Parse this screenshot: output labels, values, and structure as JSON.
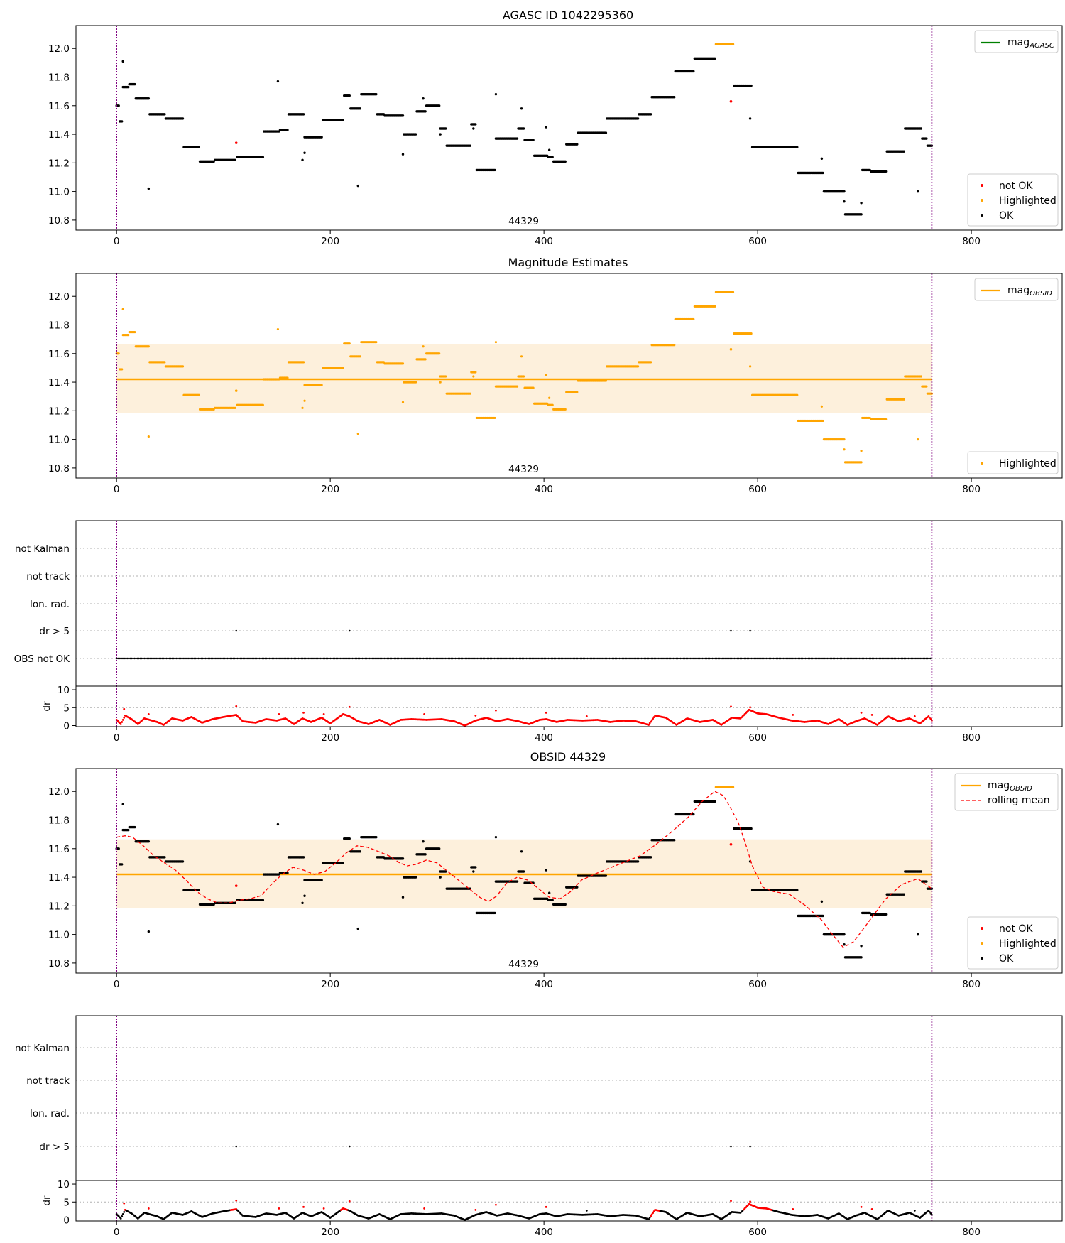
{
  "figure": {
    "obsid_marker": "44329",
    "colors": {
      "ok": "#000000",
      "not_ok": "#ff0000",
      "highlight": "#ffa500",
      "agasc_line": "#008000",
      "band": "#fdf0dc",
      "vline": "#800080",
      "grid": "#b0b0b0"
    }
  },
  "chart_data": [
    {
      "type": "scatter",
      "title": "AGASC ID 1042295360",
      "xlim": [
        -38,
        885
      ],
      "ylim": [
        10.73,
        12.16
      ],
      "xticks": [
        "0",
        "200",
        "400",
        "600",
        "800"
      ],
      "yticks": [
        "10.8",
        "11.0",
        "11.2",
        "11.4",
        "11.6",
        "11.8",
        "12.0"
      ],
      "legend_lines": [
        {
          "label": "mag",
          "sub": "AGASC",
          "color": "#008000",
          "style": "solid"
        }
      ],
      "legend_points": [
        {
          "label": "not OK",
          "color": "#ff0000"
        },
        {
          "label": "Highlighted",
          "color": "#ffa500"
        },
        {
          "label": "OK",
          "color": "#000000"
        }
      ],
      "obsid_range": [
        0,
        763
      ],
      "mean": null,
      "band": null
    },
    {
      "type": "scatter",
      "title": "Magnitude Estimates",
      "xlim": [
        -38,
        885
      ],
      "ylim": [
        10.73,
        12.16
      ],
      "xticks": [
        "0",
        "200",
        "400",
        "600",
        "800"
      ],
      "yticks": [
        "10.8",
        "11.0",
        "11.2",
        "11.4",
        "11.6",
        "11.8",
        "12.0"
      ],
      "legend_lines": [
        {
          "label": "mag",
          "sub": "OBSID",
          "color": "#ffa500",
          "style": "solid"
        }
      ],
      "legend_points": [
        {
          "label": "Highlighted",
          "color": "#ffa500"
        }
      ],
      "obsid_range": [
        0,
        763
      ],
      "mean": 11.42,
      "band": [
        11.185,
        11.665
      ]
    },
    {
      "type": "scatter",
      "title": "",
      "xlim": [
        -38,
        885
      ],
      "categories": [
        "not Kalman",
        "not track",
        "Ion. rad.",
        "dr > 5",
        "OBS not OK"
      ],
      "flag_points": {
        "dr > 5": [
          112,
          218,
          575,
          593
        ],
        "OBS not OK": "all"
      },
      "dr_yticks": [
        "0",
        "5",
        "10"
      ],
      "dr_ylim": [
        -0.3,
        11
      ],
      "xticks": [
        "0",
        "200",
        "400",
        "600",
        "800"
      ],
      "obsid_range": [
        0,
        763
      ]
    },
    {
      "type": "scatter",
      "title": "OBSID 44329",
      "xlim": [
        -38,
        885
      ],
      "ylim": [
        10.73,
        12.16
      ],
      "xticks": [
        "0",
        "200",
        "400",
        "600",
        "800"
      ],
      "yticks": [
        "10.8",
        "11.0",
        "11.2",
        "11.4",
        "11.6",
        "11.8",
        "12.0"
      ],
      "legend_lines": [
        {
          "label": "mag",
          "sub": "OBSID",
          "color": "#ffa500",
          "style": "solid"
        },
        {
          "label": "rolling mean",
          "sub": "",
          "color": "#ff0000",
          "style": "dashed"
        }
      ],
      "legend_points": [
        {
          "label": "not OK",
          "color": "#ff0000"
        },
        {
          "label": "Highlighted",
          "color": "#ffa500"
        },
        {
          "label": "OK",
          "color": "#000000"
        }
      ],
      "obsid_range": [
        0,
        763
      ],
      "mean": 11.42,
      "band": [
        11.185,
        11.665
      ],
      "rolling_mean": [
        [
          0,
          11.68
        ],
        [
          8,
          11.69
        ],
        [
          15,
          11.68
        ],
        [
          25,
          11.62
        ],
        [
          35,
          11.55
        ],
        [
          45,
          11.5
        ],
        [
          55,
          11.45
        ],
        [
          65,
          11.38
        ],
        [
          75,
          11.3
        ],
        [
          85,
          11.25
        ],
        [
          95,
          11.22
        ],
        [
          105,
          11.22
        ],
        [
          115,
          11.24
        ],
        [
          125,
          11.25
        ],
        [
          135,
          11.27
        ],
        [
          145,
          11.35
        ],
        [
          155,
          11.42
        ],
        [
          165,
          11.47
        ],
        [
          175,
          11.45
        ],
        [
          185,
          11.42
        ],
        [
          195,
          11.44
        ],
        [
          205,
          11.5
        ],
        [
          215,
          11.57
        ],
        [
          225,
          11.62
        ],
        [
          235,
          11.61
        ],
        [
          245,
          11.58
        ],
        [
          255,
          11.55
        ],
        [
          265,
          11.5
        ],
        [
          272,
          11.48
        ],
        [
          280,
          11.49
        ],
        [
          290,
          11.52
        ],
        [
          300,
          11.5
        ],
        [
          310,
          11.44
        ],
        [
          320,
          11.38
        ],
        [
          330,
          11.32
        ],
        [
          340,
          11.26
        ],
        [
          348,
          11.23
        ],
        [
          356,
          11.27
        ],
        [
          365,
          11.36
        ],
        [
          375,
          11.4
        ],
        [
          385,
          11.38
        ],
        [
          395,
          11.32
        ],
        [
          405,
          11.26
        ],
        [
          415,
          11.25
        ],
        [
          425,
          11.3
        ],
        [
          435,
          11.38
        ],
        [
          450,
          11.43
        ],
        [
          470,
          11.49
        ],
        [
          490,
          11.55
        ],
        [
          505,
          11.63
        ],
        [
          520,
          11.72
        ],
        [
          535,
          11.82
        ],
        [
          548,
          11.93
        ],
        [
          560,
          12.0
        ],
        [
          568,
          11.97
        ],
        [
          575,
          11.88
        ],
        [
          582,
          11.78
        ],
        [
          588,
          11.65
        ],
        [
          595,
          11.48
        ],
        [
          605,
          11.33
        ],
        [
          615,
          11.3
        ],
        [
          630,
          11.28
        ],
        [
          645,
          11.2
        ],
        [
          660,
          11.1
        ],
        [
          670,
          11.0
        ],
        [
          680,
          10.91
        ],
        [
          690,
          10.95
        ],
        [
          700,
          11.05
        ],
        [
          710,
          11.15
        ],
        [
          720,
          11.25
        ],
        [
          735,
          11.35
        ],
        [
          750,
          11.39
        ],
        [
          763,
          11.32
        ]
      ]
    },
    {
      "type": "scatter",
      "title": "",
      "xlim": [
        -38,
        885
      ],
      "categories": [
        "not Kalman",
        "not track",
        "Ion. rad.",
        "dr > 5"
      ],
      "flag_points": {
        "dr > 5": [
          112,
          218,
          575,
          593
        ]
      },
      "dr_yticks": [
        "0",
        "5",
        "10"
      ],
      "dr_ylim": [
        -0.3,
        11
      ],
      "xticks": [
        "0",
        "200",
        "400",
        "600",
        "800"
      ],
      "obsid_range": [
        0,
        763
      ]
    }
  ],
  "mag_series": {
    "segments": [
      [
        0,
        2,
        11.6
      ],
      [
        3,
        5,
        11.49
      ],
      [
        6,
        11,
        11.73
      ],
      [
        12,
        17,
        11.75
      ],
      [
        18,
        30,
        11.65
      ],
      [
        31,
        45,
        11.54
      ],
      [
        46,
        62,
        11.51
      ],
      [
        63,
        77,
        11.31
      ],
      [
        78,
        91,
        11.21
      ],
      [
        92,
        111,
        11.22
      ],
      [
        113,
        137,
        11.24
      ],
      [
        138,
        152,
        11.42
      ],
      [
        153,
        160,
        11.43
      ],
      [
        161,
        175,
        11.54
      ],
      [
        176,
        192,
        11.38
      ],
      [
        193,
        212,
        11.5
      ],
      [
        213,
        218,
        11.67
      ],
      [
        219,
        228,
        11.58
      ],
      [
        229,
        243,
        11.68
      ],
      [
        244,
        250,
        11.54
      ],
      [
        251,
        268,
        11.53
      ],
      [
        269,
        280,
        11.4
      ],
      [
        281,
        289,
        11.56
      ],
      [
        290,
        302,
        11.6
      ],
      [
        303,
        308,
        11.44
      ],
      [
        309,
        331,
        11.32
      ],
      [
        332,
        336,
        11.47
      ],
      [
        337,
        354,
        11.15
      ],
      [
        355,
        375,
        11.37
      ],
      [
        376,
        381,
        11.44
      ],
      [
        382,
        390,
        11.36
      ],
      [
        391,
        403,
        11.25
      ],
      [
        404,
        408,
        11.24
      ],
      [
        409,
        420,
        11.21
      ],
      [
        421,
        431,
        11.33
      ],
      [
        432,
        458,
        11.41
      ],
      [
        459,
        488,
        11.51
      ],
      [
        489,
        500,
        11.54
      ],
      [
        501,
        522,
        11.66
      ],
      [
        523,
        540,
        11.84
      ],
      [
        541,
        560,
        11.93
      ],
      [
        561,
        577,
        12.03
      ],
      [
        578,
        594,
        11.74
      ],
      [
        595,
        637,
        11.31
      ],
      [
        638,
        661,
        11.13
      ],
      [
        662,
        681,
        11.0
      ],
      [
        682,
        697,
        10.84
      ],
      [
        698,
        705,
        11.15
      ],
      [
        706,
        720,
        11.14
      ],
      [
        721,
        737,
        11.28
      ],
      [
        738,
        753,
        11.44
      ],
      [
        754,
        758,
        11.37
      ],
      [
        759,
        763,
        11.32
      ]
    ],
    "outliers": [
      [
        4,
        11.49
      ],
      [
        6,
        11.91
      ],
      [
        30,
        11.02
      ],
      [
        151,
        11.77
      ],
      [
        174,
        11.22
      ],
      [
        176,
        11.27
      ],
      [
        226,
        11.04
      ],
      [
        268,
        11.26
      ],
      [
        287,
        11.65
      ],
      [
        303,
        11.4
      ],
      [
        334,
        11.44
      ],
      [
        355,
        11.68
      ],
      [
        379,
        11.58
      ],
      [
        402,
        11.45
      ],
      [
        405,
        11.29
      ],
      [
        593,
        11.51
      ],
      [
        660,
        11.23
      ],
      [
        681,
        10.93
      ],
      [
        697,
        10.92
      ],
      [
        750,
        11.0
      ]
    ],
    "not_ok": [
      [
        112,
        11.34
      ],
      [
        575,
        11.63
      ]
    ]
  },
  "dr_series": {
    "knots": [
      [
        0,
        1.6
      ],
      [
        4,
        0.4
      ],
      [
        8,
        2.8
      ],
      [
        14,
        1.8
      ],
      [
        20,
        0.4
      ],
      [
        26,
        2.0
      ],
      [
        32,
        1.5
      ],
      [
        38,
        1.0
      ],
      [
        44,
        0.2
      ],
      [
        52,
        2.0
      ],
      [
        62,
        1.4
      ],
      [
        70,
        2.4
      ],
      [
        80,
        0.8
      ],
      [
        90,
        1.8
      ],
      [
        100,
        2.4
      ],
      [
        112,
        3.0
      ],
      [
        118,
        1.2
      ],
      [
        130,
        0.8
      ],
      [
        140,
        1.8
      ],
      [
        150,
        1.4
      ],
      [
        158,
        2.0
      ],
      [
        166,
        0.4
      ],
      [
        174,
        2.0
      ],
      [
        182,
        1.0
      ],
      [
        192,
        2.2
      ],
      [
        200,
        0.6
      ],
      [
        212,
        3.2
      ],
      [
        218,
        2.6
      ],
      [
        226,
        1.2
      ],
      [
        236,
        0.4
      ],
      [
        246,
        1.6
      ],
      [
        256,
        0.2
      ],
      [
        266,
        1.6
      ],
      [
        276,
        1.8
      ],
      [
        290,
        1.6
      ],
      [
        304,
        1.8
      ],
      [
        316,
        1.2
      ],
      [
        326,
        0.0
      ],
      [
        336,
        1.4
      ],
      [
        346,
        2.2
      ],
      [
        356,
        1.2
      ],
      [
        366,
        1.8
      ],
      [
        376,
        1.2
      ],
      [
        386,
        0.4
      ],
      [
        396,
        1.6
      ],
      [
        402,
        1.8
      ],
      [
        412,
        1.0
      ],
      [
        422,
        1.6
      ],
      [
        436,
        1.4
      ],
      [
        450,
        1.6
      ],
      [
        462,
        1.0
      ],
      [
        474,
        1.4
      ],
      [
        486,
        1.2
      ],
      [
        498,
        0.2
      ],
      [
        504,
        2.8
      ],
      [
        514,
        2.2
      ],
      [
        524,
        0.2
      ],
      [
        534,
        2.0
      ],
      [
        546,
        1.0
      ],
      [
        558,
        1.6
      ],
      [
        566,
        0.2
      ],
      [
        576,
        2.2
      ],
      [
        584,
        2.0
      ],
      [
        592,
        4.4
      ],
      [
        600,
        3.4
      ],
      [
        608,
        3.2
      ],
      [
        620,
        2.2
      ],
      [
        632,
        1.4
      ],
      [
        644,
        1.0
      ],
      [
        656,
        1.4
      ],
      [
        666,
        0.4
      ],
      [
        676,
        1.8
      ],
      [
        684,
        0.2
      ],
      [
        692,
        1.2
      ],
      [
        700,
        2.0
      ],
      [
        712,
        0.2
      ],
      [
        722,
        2.6
      ],
      [
        732,
        1.2
      ],
      [
        742,
        2.0
      ],
      [
        752,
        0.6
      ],
      [
        760,
        2.6
      ],
      [
        763,
        1.4
      ]
    ],
    "spikes": [
      [
        7,
        4.6
      ],
      [
        30,
        3.2
      ],
      [
        112,
        5.4
      ],
      [
        152,
        3.2
      ],
      [
        175,
        3.6
      ],
      [
        194,
        3.2
      ],
      [
        218,
        5.2
      ],
      [
        288,
        3.2
      ],
      [
        336,
        2.8
      ],
      [
        355,
        4.2
      ],
      [
        402,
        3.6
      ],
      [
        440,
        2.6
      ],
      [
        575,
        5.3
      ],
      [
        593,
        5.1
      ],
      [
        633,
        3.0
      ],
      [
        697,
        3.6
      ],
      [
        707,
        3.0
      ],
      [
        747,
        2.6
      ]
    ]
  }
}
